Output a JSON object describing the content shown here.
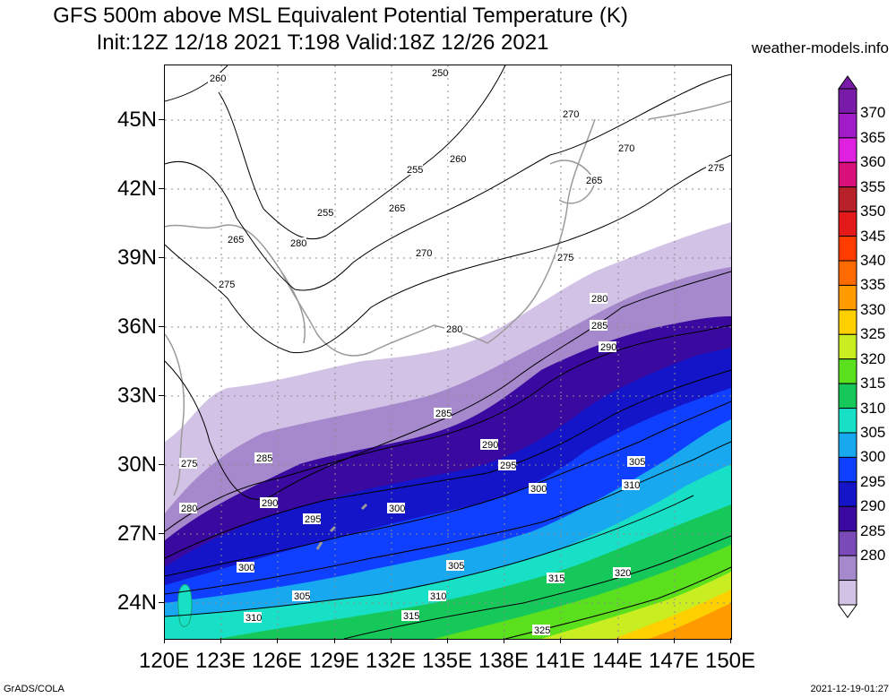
{
  "title": {
    "line1": "GFS 500m above MSL Equivalent Potential Temperature (K)",
    "line2": "Init:12Z 12/18 2021 T:198 Valid:18Z 12/26 2021",
    "site": "weather-models.info"
  },
  "axes": {
    "x_labels": [
      "120E",
      "123E",
      "126E",
      "129E",
      "132E",
      "135E",
      "138E",
      "141E",
      "144E",
      "147E",
      "150E"
    ],
    "y_labels": [
      "45N",
      "42N",
      "39N",
      "36N",
      "33N",
      "30N",
      "27N",
      "24N"
    ]
  },
  "colorbar": {
    "labels": [
      "370",
      "365",
      "360",
      "355",
      "350",
      "345",
      "340",
      "335",
      "330",
      "325",
      "320",
      "315",
      "310",
      "305",
      "300",
      "295",
      "290",
      "285",
      "280"
    ],
    "colors": [
      "#7a1aa8",
      "#a21bc9",
      "#e020e0",
      "#d8117a",
      "#b8202a",
      "#e41a1a",
      "#ff3c00",
      "#ff6a00",
      "#ff9a00",
      "#ffd000",
      "#c8ee22",
      "#5be01e",
      "#16c85a",
      "#18e0c6",
      "#18a8f0",
      "#1040ff",
      "#1414c8",
      "#3a0aa0",
      "#7a4ab8",
      "#a688cc",
      "#d2c2e6"
    ]
  },
  "contour_labels": [
    "250",
    "260",
    "255",
    "260",
    "265",
    "255",
    "265",
    "270",
    "270",
    "265",
    "275",
    "275",
    "275",
    "270",
    "280",
    "280",
    "285",
    "290",
    "280",
    "285",
    "290",
    "295",
    "285",
    "290",
    "295",
    "300",
    "305",
    "300",
    "310",
    "305",
    "300",
    "305",
    "310",
    "315",
    "320",
    "315",
    "310",
    "325",
    "275",
    "280"
  ],
  "footer": {
    "left": "GrADS/COLA",
    "right": "2021-12-19-01:27"
  }
}
